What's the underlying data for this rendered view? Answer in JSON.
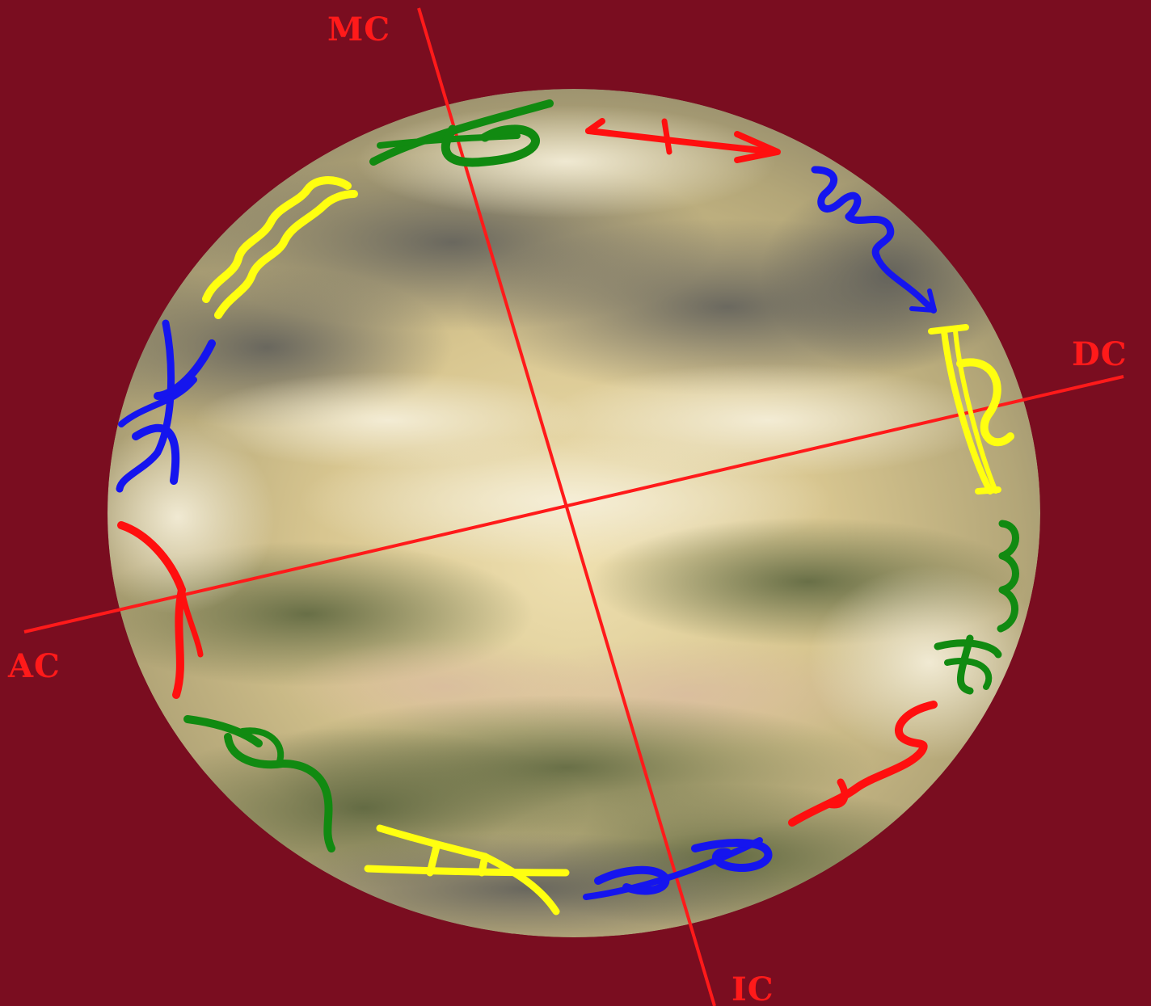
{
  "colors": {
    "background": "#7a0d20",
    "axis": "#ff1a1a",
    "red": "#ff0f0f",
    "green": "#118a11",
    "blue": "#1515ee",
    "yellow": "#ffff10"
  },
  "axes": {
    "mc": "MC",
    "ic": "IC",
    "ac": "AC",
    "dc": "DC"
  },
  "signs": [
    {
      "name": "capricorn",
      "color": "green"
    },
    {
      "name": "sagittarius",
      "color": "red"
    },
    {
      "name": "scorpio",
      "color": "blue"
    },
    {
      "name": "libra",
      "color": "yellow"
    },
    {
      "name": "virgo",
      "color": "green"
    },
    {
      "name": "leo",
      "color": "red"
    },
    {
      "name": "cancer",
      "color": "blue"
    },
    {
      "name": "gemini",
      "color": "yellow"
    },
    {
      "name": "taurus",
      "color": "green"
    },
    {
      "name": "aries",
      "color": "red"
    },
    {
      "name": "pisces",
      "color": "blue"
    },
    {
      "name": "aquarius",
      "color": "yellow"
    }
  ]
}
